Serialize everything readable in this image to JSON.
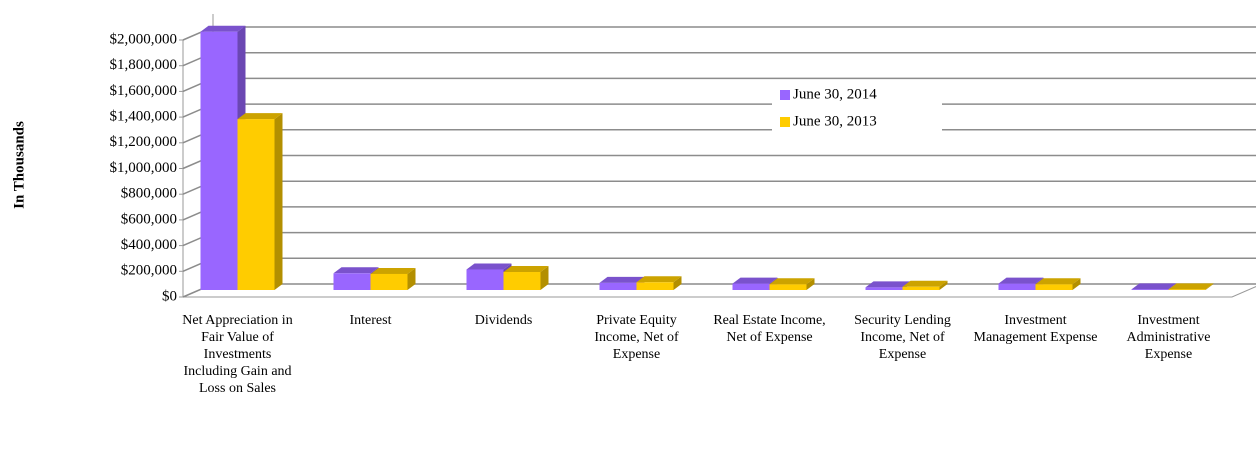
{
  "chart_data": {
    "type": "bar3d",
    "y_axis_label": "In Thousands",
    "categories": [
      "Net Appreciation in Fair Value of Investments Including Gain and Loss on Sales",
      "Interest",
      "Dividends",
      "Private Equity Income, Net of Expense",
      "Real Estate Income, Net of Expense",
      "Security Lending Income, Net of Expense",
      "Investment Management Expense",
      "Investment Administrative Expense"
    ],
    "series": [
      {
        "name": "June 30, 2014",
        "color": "#9966ff",
        "values": [
          2010000,
          130000,
          160000,
          55000,
          50000,
          20000,
          50000,
          5000
        ]
      },
      {
        "name": "June 30, 2013",
        "color": "#ffcc00",
        "values": [
          1330000,
          125000,
          140000,
          60000,
          45000,
          25000,
          45000,
          5000
        ]
      }
    ],
    "ylim": [
      0,
      2000000
    ],
    "yticks": [
      {
        "value": 0,
        "label": "$0"
      },
      {
        "value": 200000,
        "label": "$200,000"
      },
      {
        "value": 400000,
        "label": "$400,000"
      },
      {
        "value": 600000,
        "label": "$600,000"
      },
      {
        "value": 800000,
        "label": "$800,000"
      },
      {
        "value": 1000000,
        "label": "$1,000,000"
      },
      {
        "value": 1200000,
        "label": "$1,200,000"
      },
      {
        "value": 1400000,
        "label": "$1,400,000"
      },
      {
        "value": 1600000,
        "label": "$1,600,000"
      },
      {
        "value": 1800000,
        "label": "$1,800,000"
      },
      {
        "value": 2000000,
        "label": "$2,000,000"
      }
    ],
    "grid": true
  }
}
